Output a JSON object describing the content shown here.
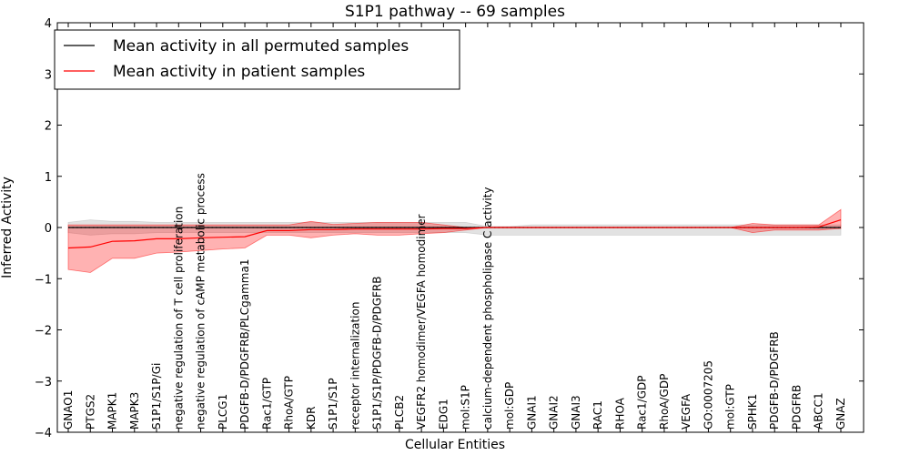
{
  "chart_data": {
    "type": "line",
    "title": "S1P1 pathway -- 69 samples",
    "xlabel": "Cellular Entities",
    "ylabel": "Inferred Activity",
    "ylim": [
      -4,
      4
    ],
    "yticks": [
      -4,
      -3,
      -2,
      -1,
      0,
      1,
      2,
      3,
      4
    ],
    "ytick_labels": [
      "−4",
      "−3",
      "−2",
      "−1",
      "0",
      "1",
      "2",
      "3",
      "4"
    ],
    "categories": [
      "GNAO1",
      "PTGS2",
      "MAPK1",
      "MAPK3",
      "S1P1/S1P/Gi",
      "negative regulation of T cell proliferation",
      "negative regulation of cAMP metabolic process",
      "PLCG1",
      "PDGFB-D/PDGFRB/PLCgamma1",
      "Rac1/GTP",
      "RhoA/GTP",
      "KDR",
      "S1P1/S1P",
      "receptor internalization",
      "S1P1/S1P/PDGFB-D/PDGFRB",
      "PLCB2",
      "VEGFR2 homodimer/VEGFA homodimer",
      "EDG1",
      "mol:S1P",
      "calcium-dependent phospholipase C activity",
      "mol:GDP",
      "GNAI1",
      "GNAI2",
      "GNAI3",
      "RAC1",
      "RHOA",
      "Rac1/GDP",
      "RhoA/GDP",
      "VEGFA",
      "GO:0007205",
      "mol:GTP",
      "SPHK1",
      "PDGFB-D/PDGFRB",
      "PDGFRB",
      "ABCC1",
      "GNAZ"
    ],
    "series": [
      {
        "name": "Mean activity in all permuted samples",
        "color": "#000000",
        "values": [
          0,
          0,
          0,
          0,
          0,
          0,
          0,
          0,
          0,
          0,
          0,
          0,
          0,
          0,
          0,
          0,
          0,
          0,
          0,
          0,
          0,
          0,
          0,
          0,
          0,
          0,
          0,
          0,
          0,
          0,
          0,
          0,
          0,
          0,
          0,
          0
        ],
        "upper": [
          0.1,
          0.15,
          0.12,
          0.12,
          0.1,
          0.1,
          0.1,
          0.1,
          0.1,
          0.1,
          0.1,
          0.1,
          0.1,
          0.1,
          0.1,
          0.1,
          0.1,
          0.1,
          0.1,
          0.02,
          0.02,
          0.05,
          0.05,
          0.05,
          0.05,
          0.05,
          0.05,
          0.05,
          0.05,
          0.05,
          0.05,
          0.05,
          0.05,
          0.05,
          0.05,
          0.05
        ],
        "lower": [
          -0.1,
          -0.15,
          -0.12,
          -0.12,
          -0.1,
          -0.1,
          -0.1,
          -0.1,
          -0.1,
          -0.1,
          -0.1,
          -0.1,
          -0.1,
          -0.1,
          -0.1,
          -0.1,
          -0.1,
          -0.1,
          -0.1,
          -0.15,
          -0.15,
          -0.15,
          -0.15,
          -0.15,
          -0.15,
          -0.15,
          -0.15,
          -0.15,
          -0.15,
          -0.15,
          -0.15,
          -0.15,
          -0.15,
          -0.15,
          -0.15,
          -0.15
        ],
        "band_color": "#bfbfbf"
      },
      {
        "name": "Mean activity in patient samples",
        "color": "#ff0000",
        "values": [
          -0.4,
          -0.38,
          -0.27,
          -0.26,
          -0.22,
          -0.22,
          -0.2,
          -0.19,
          -0.18,
          -0.06,
          -0.06,
          -0.04,
          -0.04,
          -0.03,
          -0.03,
          -0.03,
          -0.03,
          -0.02,
          -0.02,
          0,
          0,
          0,
          0,
          0,
          0,
          0,
          0,
          0,
          0,
          0,
          0,
          0,
          0,
          0,
          0.01,
          0.15
        ],
        "upper": [
          0.05,
          0.05,
          0.05,
          0.05,
          0.05,
          0.05,
          0.05,
          0.05,
          0.05,
          0.05,
          0.05,
          0.12,
          0.06,
          0.08,
          0.1,
          0.1,
          0.1,
          0.05,
          0.0,
          0.0,
          0.0,
          0.0,
          0.0,
          0.0,
          0.0,
          0.0,
          0.0,
          0.0,
          0.0,
          0.0,
          0.0,
          0.08,
          0.05,
          0.05,
          0.05,
          0.35
        ],
        "lower": [
          -0.82,
          -0.88,
          -0.6,
          -0.6,
          -0.5,
          -0.48,
          -0.45,
          -0.42,
          -0.4,
          -0.15,
          -0.15,
          -0.2,
          -0.15,
          -0.12,
          -0.15,
          -0.15,
          -0.12,
          -0.1,
          -0.05,
          0.0,
          0.0,
          0.0,
          0.0,
          0.0,
          0.0,
          0.0,
          0.0,
          0.0,
          0.0,
          0.0,
          0.0,
          -0.1,
          -0.05,
          -0.05,
          -0.05,
          -0.02
        ],
        "band_color": "#ff0000"
      }
    ],
    "baseline_dotted": 0,
    "legend_position": "top-left"
  }
}
